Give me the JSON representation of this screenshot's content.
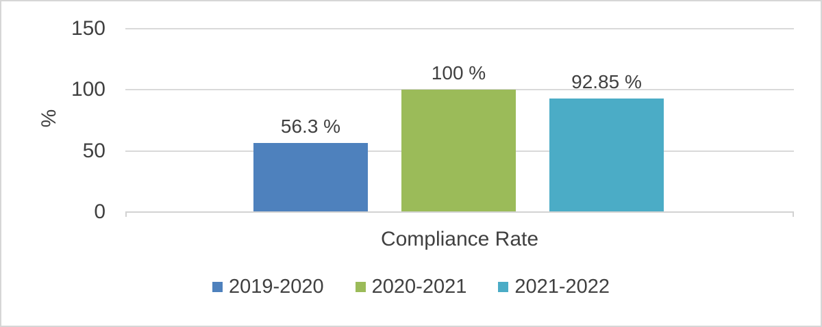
{
  "figure": {
    "background": "#FFFFFF",
    "border_color": "#D6D6D6",
    "text_color": "#404040",
    "grid_color": "#D9D9D9",
    "axis_color": "#D2D2D2"
  },
  "chart_data": {
    "type": "bar",
    "title": "",
    "categories": [
      "Compliance Rate"
    ],
    "series": [
      {
        "name": "2019-2020",
        "values": [
          56.3
        ],
        "data_label": "56.3 %",
        "color": "#4E81BD"
      },
      {
        "name": "2020-2021",
        "values": [
          100
        ],
        "data_label": "100 %",
        "color": "#9BBB59"
      },
      {
        "name": "2021-2022",
        "values": [
          92.85
        ],
        "data_label": "92.85 %",
        "color": "#4BACC6"
      }
    ],
    "xlabel": "Compliance Rate",
    "ylabel": "%",
    "ylim": [
      0,
      150
    ],
    "yticks": [
      0,
      50,
      100,
      150
    ],
    "grid": true,
    "legend_position": "bottom"
  }
}
